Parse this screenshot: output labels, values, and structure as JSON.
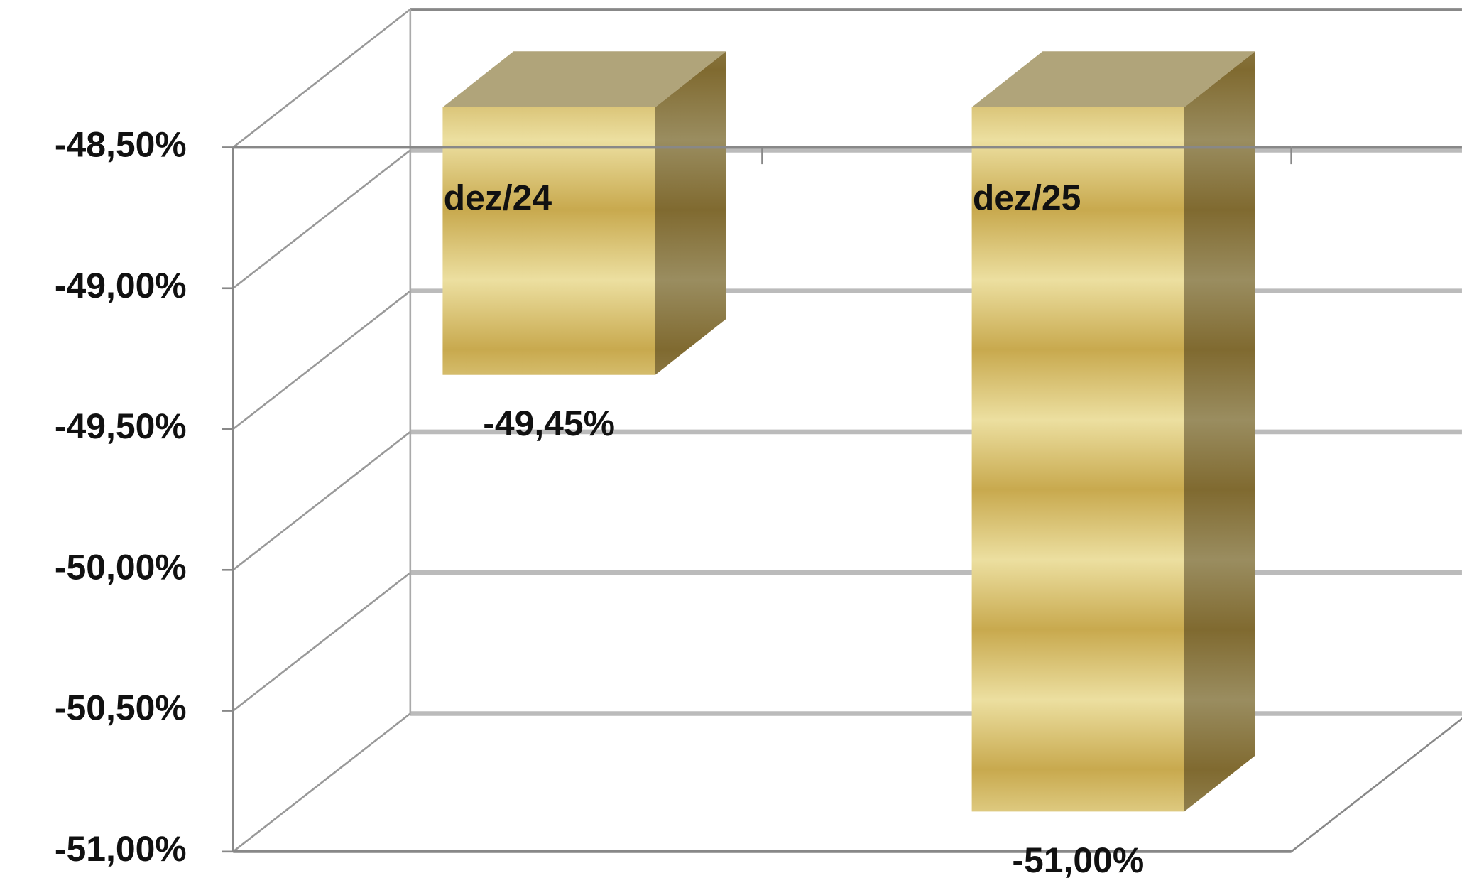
{
  "chart_data": {
    "type": "bar3d",
    "categories": [
      "dez/24",
      "dez/25"
    ],
    "values": [
      -49.45,
      -51.0
    ],
    "value_labels": [
      "-49,45%",
      "-51,00%"
    ],
    "ylim": [
      -48.5,
      -51.0
    ],
    "yticks": [
      {
        "value": -48.5,
        "label": "-48,50%"
      },
      {
        "value": -49.0,
        "label": "-49,00%"
      },
      {
        "value": -49.5,
        "label": "-49,50%"
      },
      {
        "value": -50.0,
        "label": "-50,00%"
      },
      {
        "value": -50.5,
        "label": "-50,50%"
      },
      {
        "value": -51.0,
        "label": "-51,00%"
      }
    ],
    "color": "#d8bd66",
    "grid": true
  }
}
